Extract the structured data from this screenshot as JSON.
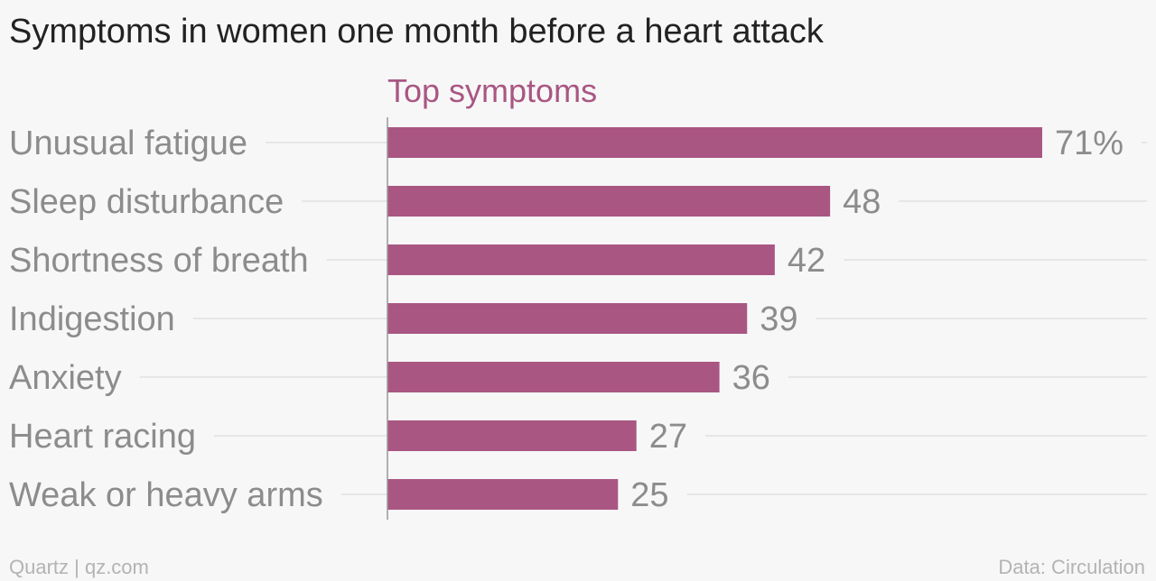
{
  "title": "Symptoms in women one month before a heart attack",
  "footer": {
    "source_left": "Quartz | qz.com",
    "source_right": "Data: Circulation"
  },
  "colors": {
    "bar": "#a95683",
    "series_label": "#a95683",
    "category_label": "#8c8c8c",
    "value_label": "#8c8c8c",
    "gridline": "#e6e6e6",
    "axis": "#999999",
    "background": "#f7f7f7"
  },
  "chart_data": {
    "type": "bar",
    "orientation": "horizontal",
    "series_label": "Top symptoms",
    "categories": [
      "Unusual fatigue",
      "Sleep disturbance",
      "Shortness of breath",
      "Indigestion",
      "Anxiety",
      "Heart racing",
      "Weak or heavy arms"
    ],
    "values": [
      71,
      48,
      42,
      39,
      36,
      27,
      25
    ],
    "value_labels": [
      "71%",
      "48",
      "42",
      "39",
      "36",
      "27",
      "25"
    ],
    "xlim": [
      0,
      71
    ],
    "grid": true,
    "legend": "none"
  }
}
